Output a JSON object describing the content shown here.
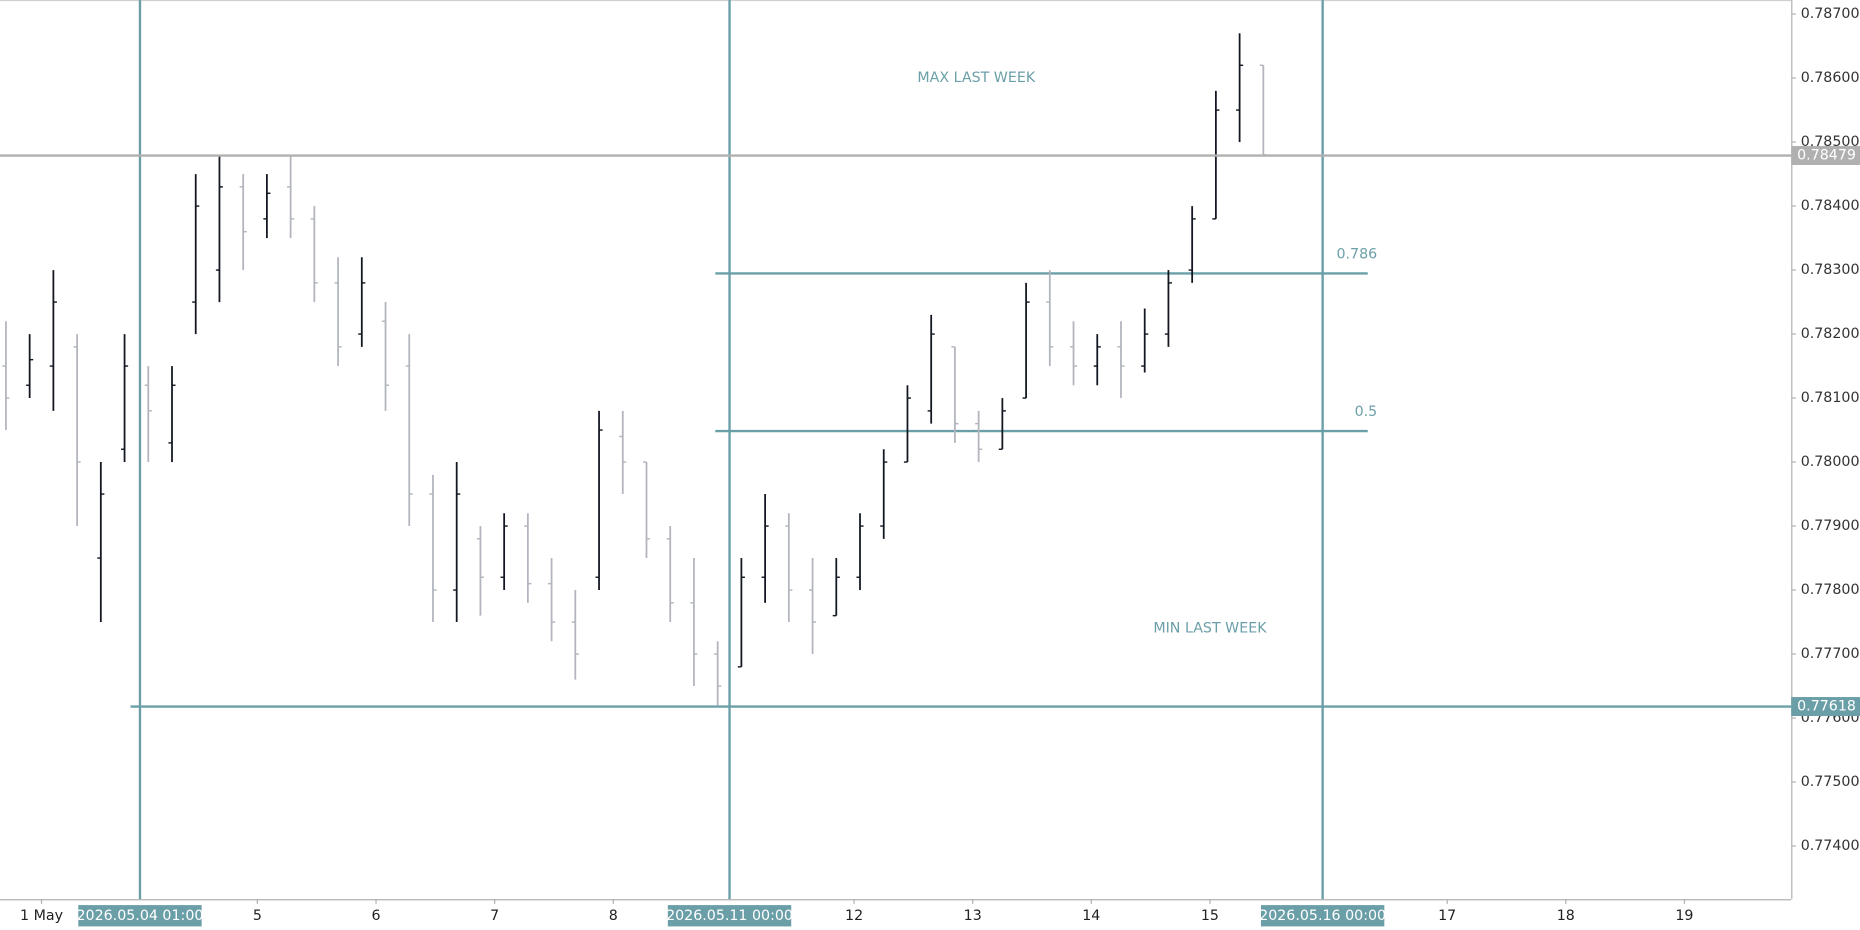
{
  "chart_data": {
    "type": "ohlc",
    "up_color": "#131722",
    "down_color": "#b2b5be",
    "xlim": [
      0,
      15.1
    ],
    "ylim": [
      0.77317,
      0.78722
    ],
    "xticks": [
      {
        "value": 0.35,
        "label": "1 May"
      },
      {
        "value": 2.17,
        "label": "5"
      },
      {
        "value": 3.17,
        "label": "6"
      },
      {
        "value": 4.17,
        "label": "7"
      },
      {
        "value": 5.17,
        "label": "8"
      },
      {
        "value": 7.2,
        "label": "12"
      },
      {
        "value": 8.2,
        "label": "13"
      },
      {
        "value": 9.2,
        "label": "14"
      },
      {
        "value": 10.2,
        "label": "15"
      },
      {
        "value": 12.2,
        "label": "17"
      },
      {
        "value": 13.2,
        "label": "18"
      },
      {
        "value": 14.2,
        "label": "19"
      }
    ],
    "yticks": [
      {
        "value": 0.774,
        "label": "0.77400"
      },
      {
        "value": 0.775,
        "label": "0.77500"
      },
      {
        "value": 0.776,
        "label": "0.77600"
      },
      {
        "value": 0.777,
        "label": "0.77700"
      },
      {
        "value": 0.778,
        "label": "0.77800"
      },
      {
        "value": 0.779,
        "label": "0.77900"
      },
      {
        "value": 0.78,
        "label": "0.78000"
      },
      {
        "value": 0.781,
        "label": "0.78100"
      },
      {
        "value": 0.782,
        "label": "0.78200"
      },
      {
        "value": 0.783,
        "label": "0.78300"
      },
      {
        "value": 0.784,
        "label": "0.78400"
      },
      {
        "value": 0.785,
        "label": "0.78500"
      },
      {
        "value": 0.786,
        "label": "0.78600"
      },
      {
        "value": 0.787,
        "label": "0.78700"
      }
    ],
    "grid": false,
    "x": [
      0.05,
      0.25,
      0.45,
      0.65,
      0.85,
      1.05,
      1.25,
      1.45,
      1.65,
      1.85,
      2.05,
      2.25,
      2.45,
      2.65,
      2.85,
      3.05,
      3.25,
      3.45,
      3.65,
      3.85,
      4.05,
      4.25,
      4.45,
      4.65,
      4.85,
      5.05,
      5.25,
      5.45,
      5.65,
      5.85,
      6.05,
      6.25,
      6.45,
      6.65,
      6.85,
      7.05,
      7.25,
      7.45,
      7.65,
      7.85,
      8.05,
      8.25,
      8.45,
      8.65,
      8.85,
      9.05,
      9.25,
      9.45,
      9.65,
      9.85,
      10.05,
      10.25,
      10.45,
      10.65
    ],
    "open": [
      0.7815,
      0.7812,
      0.7815,
      0.7818,
      0.7785,
      0.7802,
      0.7812,
      0.7803,
      0.7825,
      0.783,
      0.7843,
      0.7838,
      0.7843,
      0.7838,
      0.7828,
      0.782,
      0.7822,
      0.7815,
      0.7795,
      0.778,
      0.7788,
      0.7782,
      0.779,
      0.7781,
      0.7775,
      0.7782,
      0.7804,
      0.78,
      0.7788,
      0.7778,
      0.777,
      0.7768,
      0.7782,
      0.779,
      0.778,
      0.7776,
      0.7782,
      0.779,
      0.78,
      0.7808,
      0.7818,
      0.7806,
      0.7802,
      0.781,
      0.7825,
      0.7818,
      0.7815,
      0.7818,
      0.7815,
      0.782,
      0.783,
      0.7838,
      0.7855,
      0.7862
    ],
    "high": [
      0.7822,
      0.782,
      0.783,
      0.782,
      0.78,
      0.782,
      0.7815,
      0.7815,
      0.7845,
      0.7848,
      0.7845,
      0.7845,
      0.7848,
      0.784,
      0.7832,
      0.7832,
      0.7825,
      0.782,
      0.7798,
      0.78,
      0.779,
      0.7792,
      0.7792,
      0.7785,
      0.778,
      0.7808,
      0.7808,
      0.78,
      0.779,
      0.7785,
      0.7772,
      0.7785,
      0.7795,
      0.7792,
      0.7785,
      0.7785,
      0.7792,
      0.7802,
      0.7812,
      0.7823,
      0.7818,
      0.7808,
      0.781,
      0.7828,
      0.783,
      0.7822,
      0.782,
      0.7822,
      0.7824,
      0.783,
      0.784,
      0.7858,
      0.7867,
      0.7862
    ],
    "low": [
      0.7805,
      0.781,
      0.7808,
      0.779,
      0.7775,
      0.78,
      0.78,
      0.78,
      0.782,
      0.7825,
      0.783,
      0.7835,
      0.7835,
      0.7825,
      0.7815,
      0.7818,
      0.7808,
      0.779,
      0.7775,
      0.7775,
      0.7776,
      0.778,
      0.7778,
      0.7772,
      0.7766,
      0.778,
      0.7795,
      0.7785,
      0.7775,
      0.7765,
      0.7762,
      0.7768,
      0.7778,
      0.7775,
      0.777,
      0.7776,
      0.778,
      0.7788,
      0.78,
      0.7806,
      0.7803,
      0.78,
      0.7802,
      0.781,
      0.7815,
      0.7812,
      0.7812,
      0.781,
      0.7814,
      0.7818,
      0.7828,
      0.7838,
      0.785,
      0.7848
    ],
    "close": [
      0.781,
      0.7816,
      0.7825,
      0.78,
      0.7795,
      0.7815,
      0.7808,
      0.7812,
      0.784,
      0.7843,
      0.7836,
      0.7842,
      0.7838,
      0.7828,
      0.7818,
      0.7828,
      0.7812,
      0.7795,
      0.778,
      0.7795,
      0.7782,
      0.779,
      0.7781,
      0.7775,
      0.777,
      0.7805,
      0.78,
      0.7788,
      0.7778,
      0.777,
      0.7765,
      0.7782,
      0.779,
      0.778,
      0.7775,
      0.7782,
      0.779,
      0.78,
      0.781,
      0.782,
      0.7806,
      0.7802,
      0.7808,
      0.7825,
      0.7818,
      0.7815,
      0.7818,
      0.7815,
      0.782,
      0.7828,
      0.7838,
      0.7855,
      0.7862,
      0.7848
    ],
    "vlines": [
      {
        "value": 1.18,
        "label": "2026.05.04 01:00"
      },
      {
        "value": 6.15,
        "label": "2026.05.11 00:00"
      },
      {
        "value": 11.15,
        "label": "2026.05.16 00:00"
      }
    ],
    "line_color": "#6b9fa8",
    "hlines": [
      {
        "value": 0.78479,
        "color": "#b0b0b0",
        "x_from": 0
      },
      {
        "value": 0.77618,
        "color": "#6b9fa8",
        "x_from": 1.1
      }
    ],
    "fib": {
      "low": 0.77618,
      "high": 0.78479,
      "levels": [
        0.5,
        0.786
      ],
      "x_range": [
        6.03,
        11.53
      ]
    },
    "annotations": [
      "MAX LAST WEEK",
      "MIN LAST WEEK"
    ]
  }
}
